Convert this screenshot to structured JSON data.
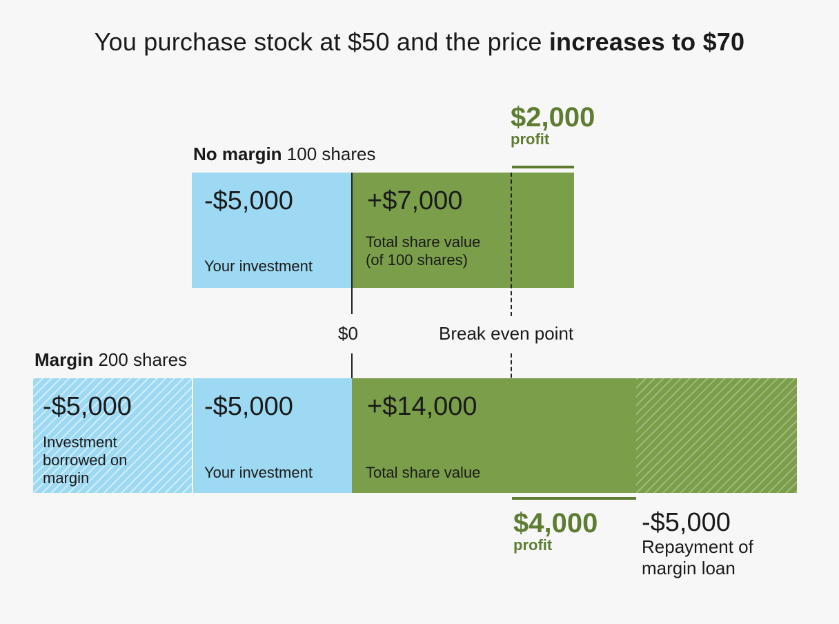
{
  "title": {
    "prefix": "You purchase stock at $50 and the price ",
    "bold": "increases to $70"
  },
  "no_margin": {
    "label_bold": "No margin",
    "label_rest": " 100 shares",
    "investment": {
      "amount": "-$5,000",
      "label": "Your investment"
    },
    "share_value": {
      "amount": "+$7,000",
      "label_line1": "Total share value",
      "label_line2": "(of 100 shares)"
    },
    "profit": {
      "amount": "$2,000",
      "label": "profit"
    }
  },
  "axis": {
    "zero_label": "$0",
    "break_even_label": "Break even point"
  },
  "margin": {
    "label_bold": "Margin",
    "label_rest": " 200 shares",
    "borrowed": {
      "amount": "-$5,000",
      "label_line1": "Investment",
      "label_line2": "borrowed on",
      "label_line3": "margin"
    },
    "investment": {
      "amount": "-$5,000",
      "label": "Your investment"
    },
    "share_value": {
      "amount": "+$14,000",
      "label": "Total share value"
    },
    "profit": {
      "amount": "$4,000",
      "label": "profit"
    },
    "repayment": {
      "amount": "-$5,000",
      "label_line1": "Repayment of",
      "label_line2": "margin loan"
    }
  },
  "colors": {
    "investment": "#9dd9f2",
    "share_value": "#7b9e4b",
    "profit_text": "#5e7d33"
  }
}
